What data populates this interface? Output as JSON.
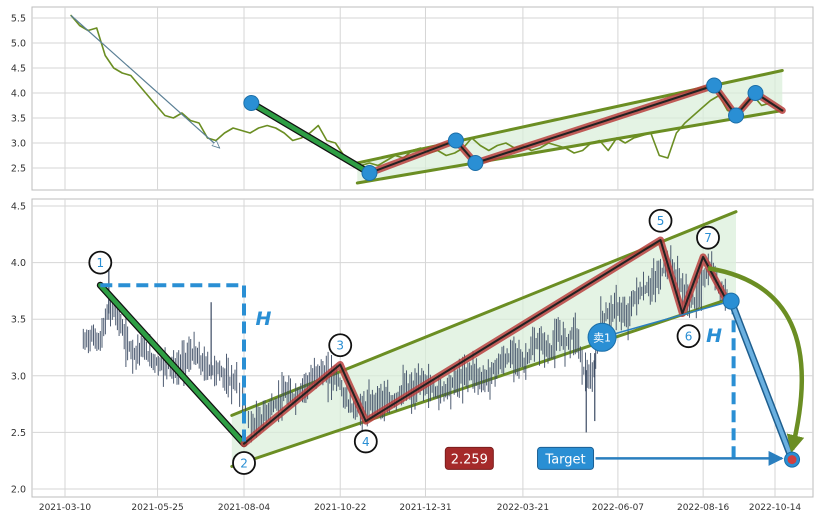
{
  "chart_data": [
    {
      "id": "top",
      "type": "line",
      "title": "",
      "xlabel": "",
      "ylabel": "",
      "ylim": [
        2.05,
        5.65
      ],
      "y_ticks": [
        2.5,
        3.0,
        3.5,
        4.0,
        4.5,
        5.0,
        5.5
      ],
      "y_tick_labels": [
        "2.5",
        "3.0",
        "3.5",
        "4.0",
        "4.5",
        "5.0",
        "5.5"
      ],
      "grid": true,
      "price_color": "#6b8e23",
      "price_series": [
        {
          "x": "2021-03-15",
          "y": 5.55
        },
        {
          "x": "2021-03-22",
          "y": 5.35
        },
        {
          "x": "2021-03-29",
          "y": 5.25
        },
        {
          "x": "2021-04-05",
          "y": 5.3
        },
        {
          "x": "2021-04-12",
          "y": 4.75
        },
        {
          "x": "2021-04-19",
          "y": 4.5
        },
        {
          "x": "2021-04-26",
          "y": 4.4
        },
        {
          "x": "2021-05-03",
          "y": 4.35
        },
        {
          "x": "2021-05-10",
          "y": 4.15
        },
        {
          "x": "2021-05-17",
          "y": 3.95
        },
        {
          "x": "2021-05-24",
          "y": 3.75
        },
        {
          "x": "2021-05-31",
          "y": 3.55
        },
        {
          "x": "2021-06-07",
          "y": 3.5
        },
        {
          "x": "2021-06-14",
          "y": 3.6
        },
        {
          "x": "2021-06-21",
          "y": 3.45
        },
        {
          "x": "2021-06-28",
          "y": 3.4
        },
        {
          "x": "2021-07-05",
          "y": 3.1
        },
        {
          "x": "2021-07-12",
          "y": 3.05
        },
        {
          "x": "2021-07-19",
          "y": 3.2
        },
        {
          "x": "2021-07-26",
          "y": 3.3
        },
        {
          "x": "2021-08-02",
          "y": 3.25
        },
        {
          "x": "2021-08-09",
          "y": 3.2
        },
        {
          "x": "2021-08-16",
          "y": 3.3
        },
        {
          "x": "2021-08-23",
          "y": 3.35
        },
        {
          "x": "2021-08-30",
          "y": 3.3
        },
        {
          "x": "2021-09-06",
          "y": 3.2
        },
        {
          "x": "2021-09-13",
          "y": 3.05
        },
        {
          "x": "2021-09-20",
          "y": 3.1
        },
        {
          "x": "2021-09-27",
          "y": 3.2
        },
        {
          "x": "2021-10-04",
          "y": 3.35
        },
        {
          "x": "2021-10-11",
          "y": 3.05
        },
        {
          "x": "2021-10-18",
          "y": 3.0
        },
        {
          "x": "2021-10-25",
          "y": 2.75
        },
        {
          "x": "2021-11-01",
          "y": 2.6
        },
        {
          "x": "2021-11-08",
          "y": 2.55
        },
        {
          "x": "2021-11-15",
          "y": 2.6
        },
        {
          "x": "2021-11-22",
          "y": 2.55
        },
        {
          "x": "2021-11-29",
          "y": 2.65
        },
        {
          "x": "2021-12-06",
          "y": 2.75
        },
        {
          "x": "2021-12-13",
          "y": 2.7
        },
        {
          "x": "2021-12-20",
          "y": 2.85
        },
        {
          "x": "2021-12-27",
          "y": 2.9
        },
        {
          "x": "2022-01-03",
          "y": 2.8
        },
        {
          "x": "2022-01-10",
          "y": 2.85
        },
        {
          "x": "2022-01-17",
          "y": 2.75
        },
        {
          "x": "2022-01-24",
          "y": 2.8
        },
        {
          "x": "2022-01-31",
          "y": 2.9
        },
        {
          "x": "2022-02-07",
          "y": 3.1
        },
        {
          "x": "2022-02-14",
          "y": 2.95
        },
        {
          "x": "2022-02-21",
          "y": 2.85
        },
        {
          "x": "2022-02-28",
          "y": 2.95
        },
        {
          "x": "2022-03-07",
          "y": 3.0
        },
        {
          "x": "2022-03-14",
          "y": 2.9
        },
        {
          "x": "2022-03-21",
          "y": 2.95
        },
        {
          "x": "2022-03-28",
          "y": 2.85
        },
        {
          "x": "2022-04-04",
          "y": 2.9
        },
        {
          "x": "2022-04-11",
          "y": 3.0
        },
        {
          "x": "2022-04-18",
          "y": 2.95
        },
        {
          "x": "2022-04-25",
          "y": 2.9
        },
        {
          "x": "2022-05-02",
          "y": 2.8
        },
        {
          "x": "2022-05-09",
          "y": 2.85
        },
        {
          "x": "2022-05-16",
          "y": 3.0
        },
        {
          "x": "2022-05-23",
          "y": 3.05
        },
        {
          "x": "2022-05-30",
          "y": 2.85
        },
        {
          "x": "2022-06-06",
          "y": 3.1
        },
        {
          "x": "2022-06-13",
          "y": 3.0
        },
        {
          "x": "2022-06-20",
          "y": 3.1
        },
        {
          "x": "2022-06-27",
          "y": 3.15
        },
        {
          "x": "2022-07-04",
          "y": 3.2
        },
        {
          "x": "2022-07-11",
          "y": 2.75
        },
        {
          "x": "2022-07-18",
          "y": 2.7
        },
        {
          "x": "2022-07-25",
          "y": 3.2
        },
        {
          "x": "2022-08-01",
          "y": 3.4
        },
        {
          "x": "2022-08-08",
          "y": 3.55
        },
        {
          "x": "2022-08-15",
          "y": 3.7
        },
        {
          "x": "2022-08-22",
          "y": 3.85
        },
        {
          "x": "2022-08-29",
          "y": 3.95
        },
        {
          "x": "2022-09-05",
          "y": 3.65
        },
        {
          "x": "2022-09-12",
          "y": 3.6
        },
        {
          "x": "2022-09-19",
          "y": 3.8
        },
        {
          "x": "2022-09-26",
          "y": 3.95
        },
        {
          "x": "2022-10-03",
          "y": 3.75
        },
        {
          "x": "2022-10-10",
          "y": 3.8
        }
      ],
      "downtrend_arrow": [
        {
          "x": "2021-03-15",
          "y": 5.55
        },
        {
          "x": "2021-07-15",
          "y": 2.9
        }
      ],
      "green_leg": [
        {
          "x": "2021-08-10",
          "y": 3.8
        },
        {
          "x": "2021-11-15",
          "y": 2.4
        }
      ],
      "red_zigzag": [
        {
          "x": "2021-11-15",
          "y": 2.4
        },
        {
          "x": "2022-01-25",
          "y": 3.05
        },
        {
          "x": "2022-02-10",
          "y": 2.6
        },
        {
          "x": "2022-08-25",
          "y": 4.15
        },
        {
          "x": "2022-09-12",
          "y": 3.55
        },
        {
          "x": "2022-09-28",
          "y": 4.0
        },
        {
          "x": "2022-10-20",
          "y": 3.65
        }
      ],
      "pivot_points": [
        {
          "x": "2021-08-10",
          "y": 3.8
        },
        {
          "x": "2021-11-15",
          "y": 2.4
        },
        {
          "x": "2022-01-25",
          "y": 3.05
        },
        {
          "x": "2022-02-10",
          "y": 2.6
        },
        {
          "x": "2022-08-25",
          "y": 4.15
        },
        {
          "x": "2022-09-12",
          "y": 3.55
        },
        {
          "x": "2022-09-28",
          "y": 4.0
        }
      ],
      "channel_upper": [
        {
          "x": "2021-11-05",
          "y": 2.6
        },
        {
          "x": "2022-10-20",
          "y": 4.45
        }
      ],
      "channel_lower": [
        {
          "x": "2021-11-05",
          "y": 2.2
        },
        {
          "x": "2022-10-20",
          "y": 3.65
        }
      ]
    },
    {
      "id": "bottom",
      "type": "line",
      "title": "",
      "xlabel": "",
      "ylabel": "",
      "x_start": "2021-02-25",
      "x_end": "2022-11-05",
      "ylim": [
        1.95,
        4.55
      ],
      "y_ticks": [
        2.0,
        2.5,
        3.0,
        3.5,
        4.0,
        4.5
      ],
      "y_tick_labels": [
        "2.0",
        "2.5",
        "3.0",
        "3.5",
        "4.0",
        "4.5"
      ],
      "x_ticks": [
        "2021-03-10",
        "2021-05-25",
        "2021-08-04",
        "2021-10-22",
        "2021-12-31",
        "2022-03-21",
        "2022-06-07",
        "2022-08-16",
        "2022-10-14"
      ],
      "x_tick_labels": [
        "2021-03-10",
        "2021-05-25",
        "2021-08-04",
        "2021-10-22",
        "2021-12-31",
        "2022-03-21",
        "2022-06-07",
        "2022-08-16",
        "2022-10-14"
      ],
      "grid": true,
      "bar_color": "#3b4a63",
      "price_bars": [
        {
          "x": "2021-03-25",
          "y": 3.3
        },
        {
          "x": "2021-04-01",
          "y": 3.35
        },
        {
          "x": "2021-04-08",
          "y": 3.3
        },
        {
          "x": "2021-04-15",
          "y": 3.6
        },
        {
          "x": "2021-04-22",
          "y": 3.55
        },
        {
          "x": "2021-04-29",
          "y": 3.3
        },
        {
          "x": "2021-05-06",
          "y": 3.2
        },
        {
          "x": "2021-05-13",
          "y": 3.25
        },
        {
          "x": "2021-05-20",
          "y": 3.15
        },
        {
          "x": "2021-05-27",
          "y": 3.1
        },
        {
          "x": "2021-06-03",
          "y": 3.1
        },
        {
          "x": "2021-06-10",
          "y": 3.05
        },
        {
          "x": "2021-06-17",
          "y": 3.15
        },
        {
          "x": "2021-06-24",
          "y": 3.2
        },
        {
          "x": "2021-07-01",
          "y": 3.1
        },
        {
          "x": "2021-07-08",
          "y": 3.05
        },
        {
          "x": "2021-07-15",
          "y": 3.05
        },
        {
          "x": "2021-07-22",
          "y": 2.95
        },
        {
          "x": "2021-07-29",
          "y": 2.95
        },
        {
          "x": "2021-08-10",
          "y": 2.55
        },
        {
          "x": "2021-08-17",
          "y": 2.6
        },
        {
          "x": "2021-08-24",
          "y": 2.7
        },
        {
          "x": "2021-08-31",
          "y": 2.75
        },
        {
          "x": "2021-09-07",
          "y": 2.85
        },
        {
          "x": "2021-09-14",
          "y": 2.8
        },
        {
          "x": "2021-09-21",
          "y": 2.9
        },
        {
          "x": "2021-09-28",
          "y": 2.95
        },
        {
          "x": "2021-10-05",
          "y": 3.05
        },
        {
          "x": "2021-10-12",
          "y": 3.0
        },
        {
          "x": "2021-10-19",
          "y": 3.0
        },
        {
          "x": "2021-10-26",
          "y": 2.8
        },
        {
          "x": "2021-11-02",
          "y": 2.7
        },
        {
          "x": "2021-11-09",
          "y": 2.7
        },
        {
          "x": "2021-11-16",
          "y": 2.75
        },
        {
          "x": "2021-11-23",
          "y": 2.8
        },
        {
          "x": "2021-11-30",
          "y": 2.75
        },
        {
          "x": "2021-12-07",
          "y": 2.8
        },
        {
          "x": "2021-12-14",
          "y": 2.9
        },
        {
          "x": "2021-12-21",
          "y": 2.85
        },
        {
          "x": "2021-12-28",
          "y": 2.95
        },
        {
          "x": "2022-01-04",
          "y": 2.9
        },
        {
          "x": "2022-01-11",
          "y": 2.85
        },
        {
          "x": "2022-01-18",
          "y": 2.9
        },
        {
          "x": "2022-01-25",
          "y": 2.95
        },
        {
          "x": "2022-02-01",
          "y": 3.0
        },
        {
          "x": "2022-02-08",
          "y": 3.05
        },
        {
          "x": "2022-02-15",
          "y": 2.95
        },
        {
          "x": "2022-02-22",
          "y": 3.0
        },
        {
          "x": "2022-03-01",
          "y": 3.1
        },
        {
          "x": "2022-03-08",
          "y": 3.15
        },
        {
          "x": "2022-03-15",
          "y": 3.2
        },
        {
          "x": "2022-03-22",
          "y": 3.1
        },
        {
          "x": "2022-03-29",
          "y": 3.25
        },
        {
          "x": "2022-04-05",
          "y": 3.3
        },
        {
          "x": "2022-04-12",
          "y": 3.2
        },
        {
          "x": "2022-04-19",
          "y": 3.35
        },
        {
          "x": "2022-04-26",
          "y": 3.3
        },
        {
          "x": "2022-05-03",
          "y": 3.4
        },
        {
          "x": "2022-05-10",
          "y": 3.05
        },
        {
          "x": "2022-05-17",
          "y": 2.95
        },
        {
          "x": "2022-05-24",
          "y": 3.5
        },
        {
          "x": "2022-05-31",
          "y": 3.55
        },
        {
          "x": "2022-06-07",
          "y": 3.6
        },
        {
          "x": "2022-06-14",
          "y": 3.5
        },
        {
          "x": "2022-06-21",
          "y": 3.7
        },
        {
          "x": "2022-06-28",
          "y": 3.75
        },
        {
          "x": "2022-07-05",
          "y": 3.8
        },
        {
          "x": "2022-07-12",
          "y": 3.9
        },
        {
          "x": "2022-07-19",
          "y": 4.0
        },
        {
          "x": "2022-07-26",
          "y": 3.85
        },
        {
          "x": "2022-08-02",
          "y": 3.7
        },
        {
          "x": "2022-08-09",
          "y": 3.65
        },
        {
          "x": "2022-08-16",
          "y": 3.85
        },
        {
          "x": "2022-08-23",
          "y": 3.95
        },
        {
          "x": "2022-08-30",
          "y": 3.75
        },
        {
          "x": "2022-09-06",
          "y": 3.7
        }
      ],
      "green_leg": [
        {
          "x": "2021-04-08",
          "y": 3.8
        },
        {
          "x": "2021-08-04",
          "y": 2.4
        }
      ],
      "red_zigzag": [
        {
          "x": "2021-08-04",
          "y": 2.4
        },
        {
          "x": "2021-10-22",
          "y": 3.1
        },
        {
          "x": "2021-11-12",
          "y": 2.6
        },
        {
          "x": "2022-07-12",
          "y": 4.2
        },
        {
          "x": "2022-07-30",
          "y": 3.55
        },
        {
          "x": "2022-08-16",
          "y": 4.05
        },
        {
          "x": "2022-09-05",
          "y": 3.65
        }
      ],
      "channel_upper": [
        {
          "x": "2021-07-25",
          "y": 2.65
        },
        {
          "x": "2022-09-12",
          "y": 4.45
        }
      ],
      "channel_lower": [
        {
          "x": "2021-07-25",
          "y": 2.2
        },
        {
          "x": "2022-09-12",
          "y": 3.7
        }
      ],
      "dashed_box": {
        "x_start": "2021-04-08",
        "x_end": "2021-08-04",
        "y_top": 3.8,
        "y_bottom": 2.4
      },
      "dashed_target_drop": {
        "x": "2022-09-10",
        "y_top": 3.65,
        "y_bottom": 2.25
      },
      "h_labels": [
        {
          "text": "H",
          "x": "2021-08-20",
          "y": 3.45
        },
        {
          "text": "H",
          "x": "2022-08-25",
          "y": 3.3
        }
      ],
      "pivot_labels": [
        {
          "text": "1",
          "x": "2021-04-08",
          "y": 4.0
        },
        {
          "text": "2",
          "x": "2021-08-04",
          "y": 2.23
        },
        {
          "text": "3",
          "x": "2021-10-22",
          "y": 3.27
        },
        {
          "text": "4",
          "x": "2021-11-12",
          "y": 2.42
        },
        {
          "text": "5",
          "x": "2022-07-12",
          "y": 4.37
        },
        {
          "text": "6",
          "x": "2022-08-04",
          "y": 3.35
        },
        {
          "text": "7",
          "x": "2022-08-20",
          "y": 4.22
        }
      ],
      "sell_marker": {
        "text": "卖1",
        "x": "2022-05-25",
        "y": 3.34
      },
      "breakout_point": {
        "x": "2022-09-08",
        "y": 3.66
      },
      "target_point": {
        "x": "2022-10-28",
        "y": 2.26
      },
      "target_value_label": {
        "text": "2.259",
        "x": "2022-02-05",
        "y": 2.27
      },
      "target_label": {
        "text": "Target",
        "x": "2022-04-25",
        "y": 2.27
      }
    }
  ],
  "colors": {
    "price_line": "#6b8e23",
    "price_bars": "#3b4a63",
    "green_leg": "#2e9e44",
    "red_zigzag": "#b8403e",
    "channel": "#6b8e23",
    "channel_fill": "#d8eed8",
    "pivot": "#2a8fd4",
    "dashed": "#2a8fd4",
    "h_label": "#2a8fd4",
    "target_box": "#2a8fd4",
    "value_box": "#a52a2a",
    "curved_arrow": "#6b8e23",
    "target_point": "#d04040"
  }
}
